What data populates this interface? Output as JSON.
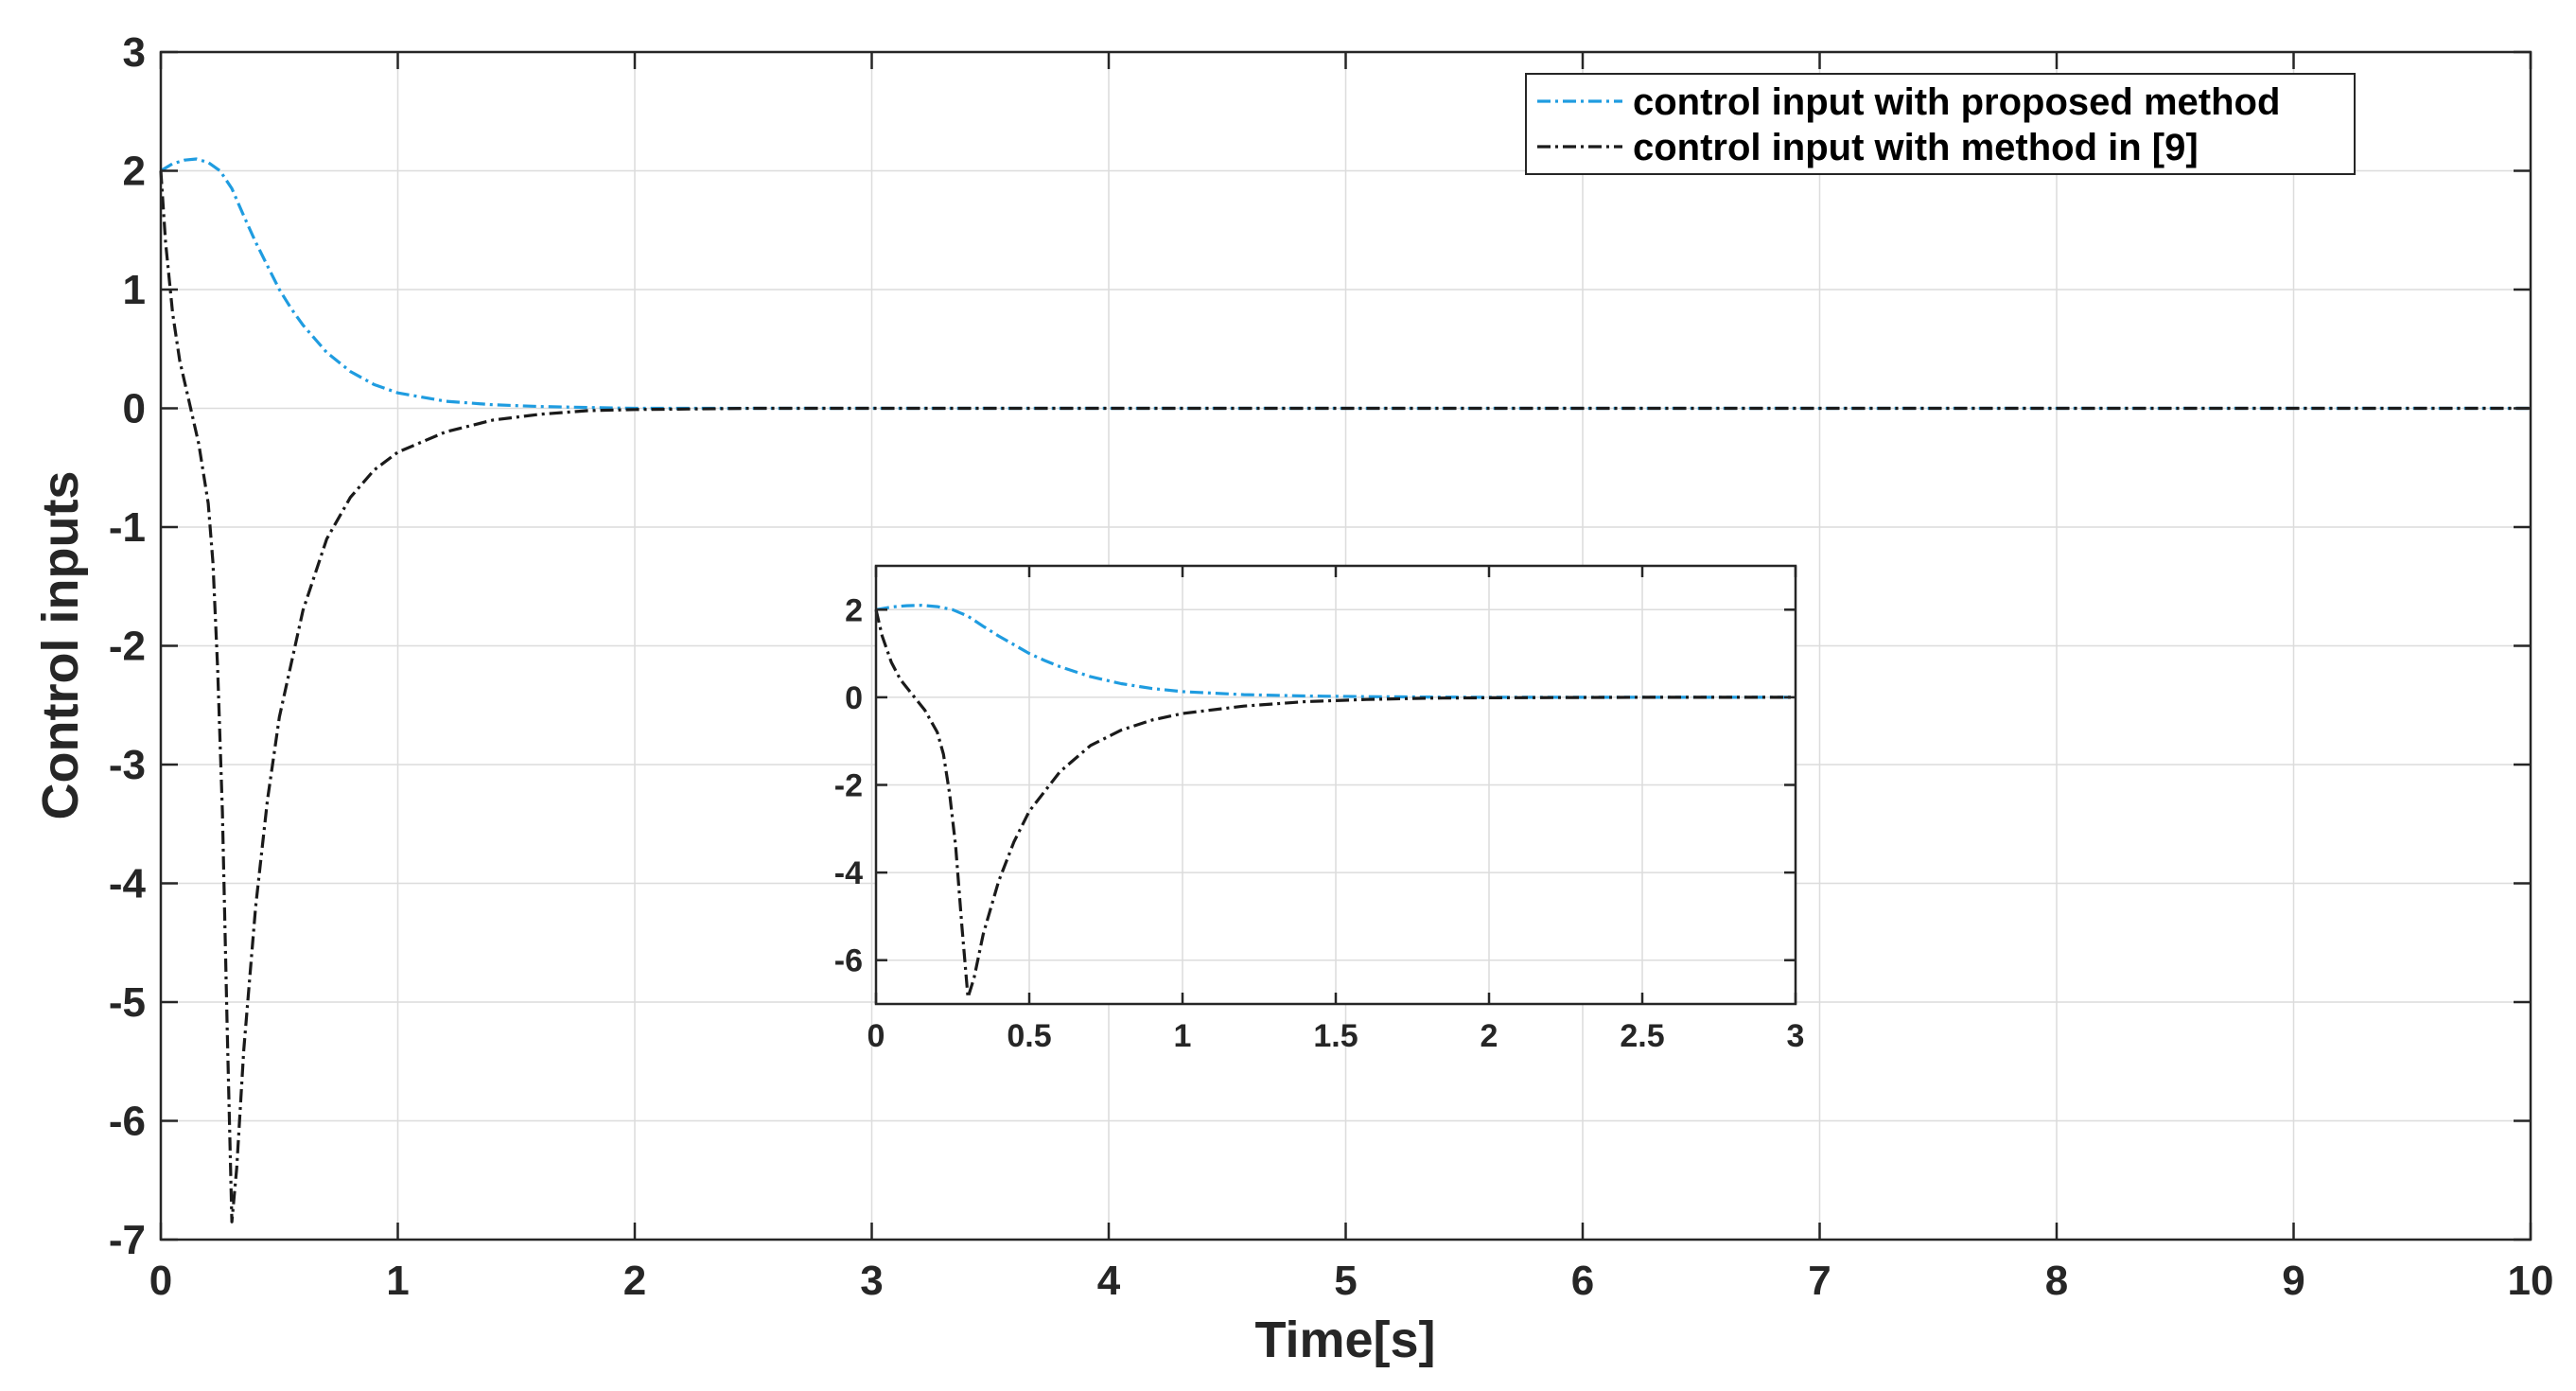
{
  "chart_data": [
    {
      "type": "line",
      "title": "",
      "xlabel": "Time[s]",
      "ylabel": "Control inputs",
      "xlim": [
        0,
        10
      ],
      "ylim": [
        -7,
        3
      ],
      "xticks": [
        0,
        1,
        2,
        3,
        4,
        5,
        6,
        7,
        8,
        9,
        10
      ],
      "yticks": [
        -7,
        -6,
        -5,
        -4,
        -3,
        -2,
        -1,
        0,
        1,
        2,
        3
      ],
      "grid": true,
      "legend_position": "top-right",
      "series": [
        {
          "name": "control input with proposed method",
          "color": "#1f9ce0",
          "style": "dash-dot",
          "points": [
            [
              0,
              2.0
            ],
            [
              0.05,
              2.06
            ],
            [
              0.1,
              2.09
            ],
            [
              0.15,
              2.1
            ],
            [
              0.2,
              2.07
            ],
            [
              0.25,
              2.0
            ],
            [
              0.3,
              1.85
            ],
            [
              0.35,
              1.62
            ],
            [
              0.4,
              1.4
            ],
            [
              0.45,
              1.2
            ],
            [
              0.5,
              1.0
            ],
            [
              0.55,
              0.84
            ],
            [
              0.6,
              0.7
            ],
            [
              0.7,
              0.47
            ],
            [
              0.8,
              0.31
            ],
            [
              0.9,
              0.2
            ],
            [
              1.0,
              0.13
            ],
            [
              1.2,
              0.06
            ],
            [
              1.4,
              0.03
            ],
            [
              1.6,
              0.015
            ],
            [
              1.8,
              0.007
            ],
            [
              2.0,
              0.0
            ],
            [
              3.0,
              0.0
            ],
            [
              4.0,
              0.0
            ],
            [
              5.0,
              0.0
            ],
            [
              6.0,
              0.0
            ],
            [
              7.0,
              0.0
            ],
            [
              8.0,
              0.0
            ],
            [
              9.0,
              0.0
            ],
            [
              10.0,
              0.0
            ]
          ]
        },
        {
          "name": "control input with method in [9]",
          "color": "#1a1a1a",
          "style": "dash-dot",
          "points": [
            [
              0,
              2.0
            ],
            [
              0.02,
              1.4
            ],
            [
              0.05,
              0.8
            ],
            [
              0.08,
              0.4
            ],
            [
              0.12,
              0.05
            ],
            [
              0.16,
              -0.3
            ],
            [
              0.2,
              -0.8
            ],
            [
              0.22,
              -1.3
            ],
            [
              0.24,
              -2.2
            ],
            [
              0.26,
              -3.4
            ],
            [
              0.28,
              -5.2
            ],
            [
              0.3,
              -6.85
            ],
            [
              0.32,
              -6.4
            ],
            [
              0.35,
              -5.4
            ],
            [
              0.4,
              -4.2
            ],
            [
              0.45,
              -3.3
            ],
            [
              0.5,
              -2.6
            ],
            [
              0.6,
              -1.7
            ],
            [
              0.7,
              -1.1
            ],
            [
              0.8,
              -0.75
            ],
            [
              0.9,
              -0.52
            ],
            [
              1.0,
              -0.37
            ],
            [
              1.2,
              -0.2
            ],
            [
              1.4,
              -0.1
            ],
            [
              1.6,
              -0.05
            ],
            [
              1.8,
              -0.02
            ],
            [
              2.0,
              -0.01
            ],
            [
              2.5,
              0.0
            ],
            [
              3.0,
              0.0
            ],
            [
              4.0,
              0.0
            ],
            [
              5.0,
              0.0
            ],
            [
              6.0,
              0.0
            ],
            [
              7.0,
              0.0
            ],
            [
              8.0,
              0.0
            ],
            [
              9.0,
              0.0
            ],
            [
              10.0,
              0.0
            ]
          ]
        }
      ]
    },
    {
      "type": "line",
      "title": "",
      "xlabel": "",
      "ylabel": "",
      "xlim": [
        0,
        3
      ],
      "ylim": [
        -7,
        3
      ],
      "xticks": [
        0,
        0.5,
        1,
        1.5,
        2,
        2.5,
        3
      ],
      "yticks": [
        -6,
        -4,
        -2,
        0,
        2
      ],
      "grid": true,
      "series": [
        {
          "color": "#1f9ce0",
          "style": "dash-dot",
          "points": [
            [
              0,
              2.0
            ],
            [
              0.05,
              2.06
            ],
            [
              0.1,
              2.09
            ],
            [
              0.15,
              2.1
            ],
            [
              0.2,
              2.07
            ],
            [
              0.25,
              2.0
            ],
            [
              0.3,
              1.85
            ],
            [
              0.35,
              1.62
            ],
            [
              0.4,
              1.4
            ],
            [
              0.45,
              1.2
            ],
            [
              0.5,
              1.0
            ],
            [
              0.55,
              0.84
            ],
            [
              0.6,
              0.7
            ],
            [
              0.7,
              0.47
            ],
            [
              0.8,
              0.31
            ],
            [
              0.9,
              0.2
            ],
            [
              1.0,
              0.13
            ],
            [
              1.2,
              0.06
            ],
            [
              1.4,
              0.03
            ],
            [
              1.6,
              0.015
            ],
            [
              1.8,
              0.007
            ],
            [
              2.0,
              0.0
            ],
            [
              2.5,
              0.0
            ],
            [
              3.0,
              0.0
            ]
          ]
        },
        {
          "color": "#1a1a1a",
          "style": "dash-dot",
          "points": [
            [
              0,
              2.0
            ],
            [
              0.02,
              1.4
            ],
            [
              0.05,
              0.8
            ],
            [
              0.08,
              0.4
            ],
            [
              0.12,
              0.05
            ],
            [
              0.16,
              -0.3
            ],
            [
              0.2,
              -0.8
            ],
            [
              0.22,
              -1.3
            ],
            [
              0.24,
              -2.2
            ],
            [
              0.26,
              -3.4
            ],
            [
              0.28,
              -5.2
            ],
            [
              0.3,
              -6.85
            ],
            [
              0.32,
              -6.4
            ],
            [
              0.35,
              -5.4
            ],
            [
              0.4,
              -4.2
            ],
            [
              0.45,
              -3.3
            ],
            [
              0.5,
              -2.6
            ],
            [
              0.6,
              -1.7
            ],
            [
              0.7,
              -1.1
            ],
            [
              0.8,
              -0.75
            ],
            [
              0.9,
              -0.52
            ],
            [
              1.0,
              -0.37
            ],
            [
              1.2,
              -0.2
            ],
            [
              1.4,
              -0.1
            ],
            [
              1.6,
              -0.05
            ],
            [
              1.8,
              -0.02
            ],
            [
              2.0,
              -0.01
            ],
            [
              2.5,
              0.0
            ],
            [
              3.0,
              0.0
            ]
          ]
        }
      ]
    }
  ]
}
